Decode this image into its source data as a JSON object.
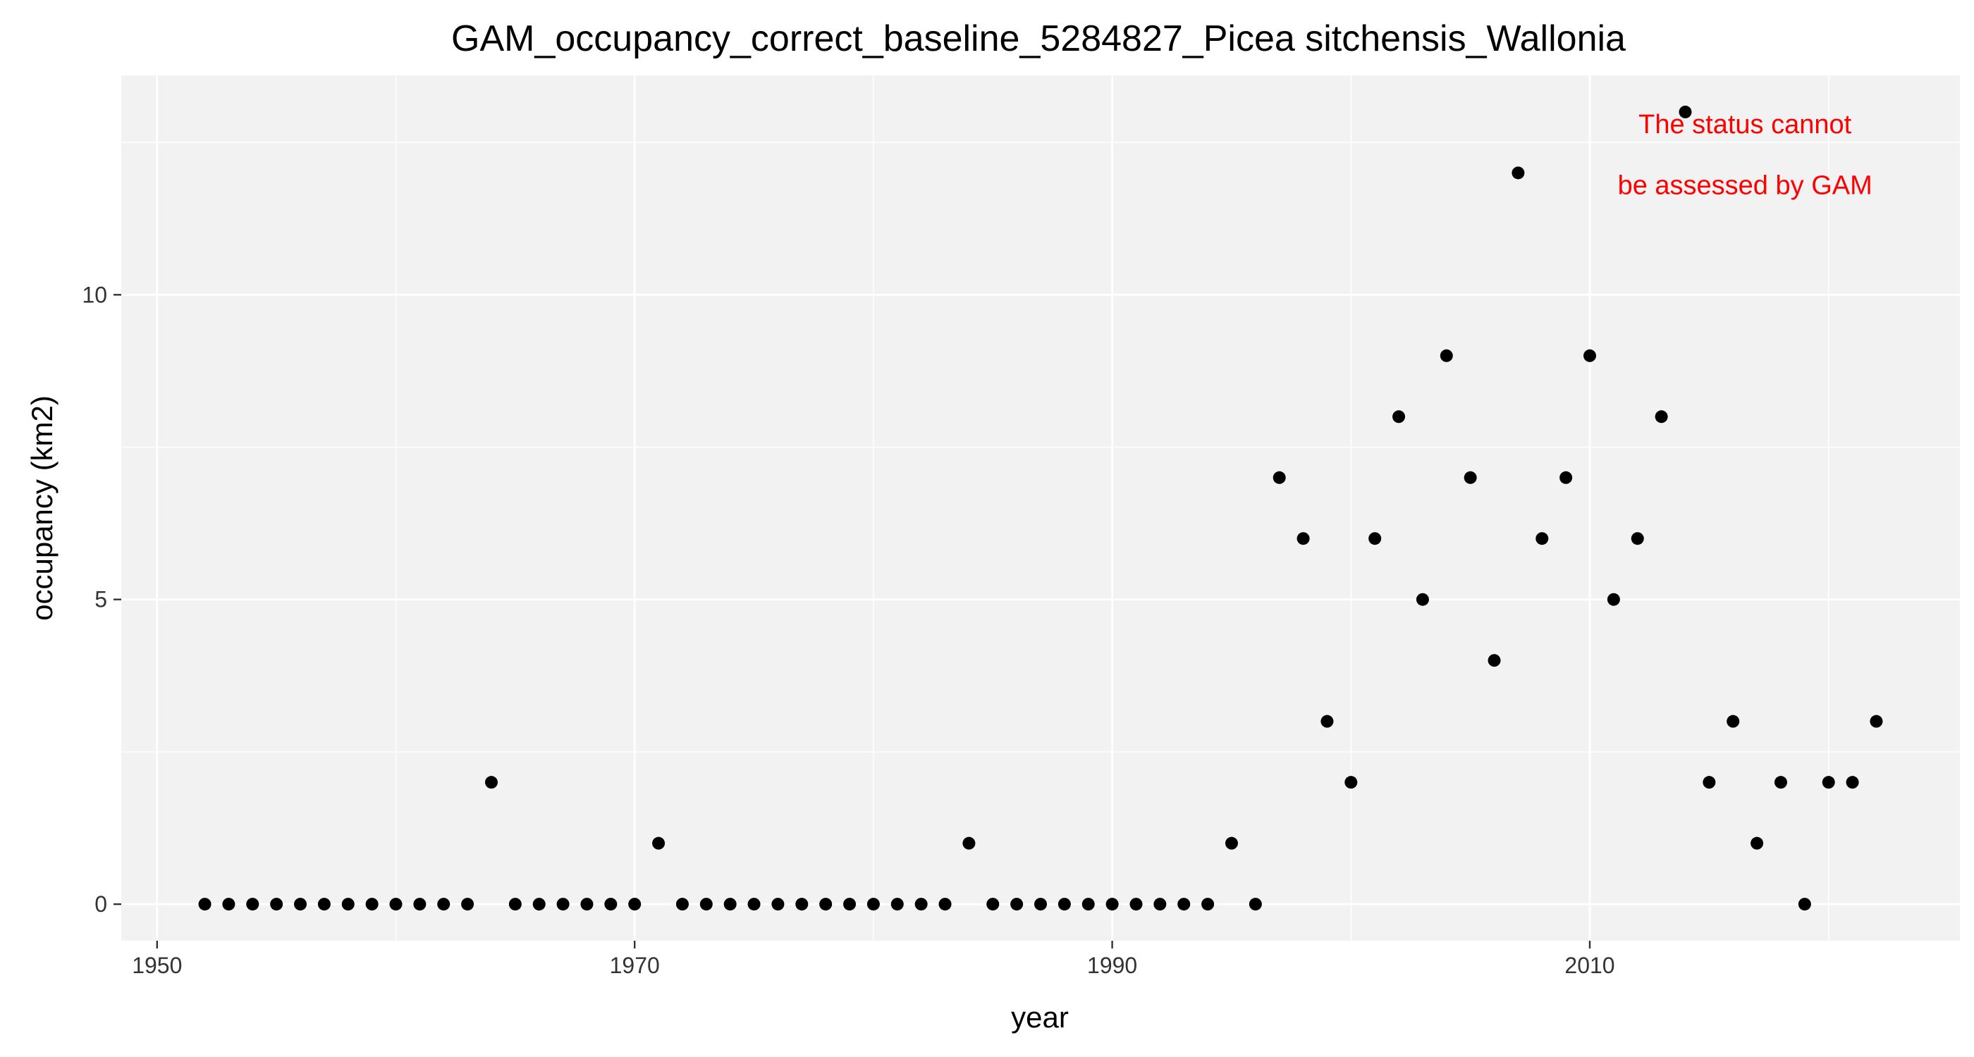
{
  "chart_data": {
    "type": "scatter",
    "title": "GAM_occupancy_correct_baseline_5284827_Picea sitchensis_Wallonia",
    "xlabel": "year",
    "ylabel": "occupancy (km2)",
    "xlim": [
      1948.5,
      2025.5
    ],
    "ylim": [
      -0.6,
      13.6
    ],
    "x_ticks": [
      1950,
      1970,
      1990,
      2010
    ],
    "y_ticks": [
      0,
      5,
      10
    ],
    "x_tick_labels": [
      "1950",
      "1970",
      "1990",
      "2010"
    ],
    "y_tick_labels": [
      "0",
      "5",
      "10"
    ],
    "grid": true,
    "legend": "none",
    "point_color": "#000000",
    "panel_color": "#f2f2f2",
    "grid_color": "#ffffff",
    "x": [
      1952,
      1953,
      1954,
      1955,
      1956,
      1957,
      1958,
      1959,
      1960,
      1961,
      1962,
      1963,
      1964,
      1965,
      1966,
      1967,
      1968,
      1969,
      1970,
      1971,
      1972,
      1973,
      1974,
      1975,
      1976,
      1977,
      1978,
      1979,
      1980,
      1981,
      1982,
      1983,
      1984,
      1985,
      1986,
      1987,
      1988,
      1989,
      1990,
      1991,
      1992,
      1993,
      1994,
      1995,
      1996,
      1997,
      1998,
      1999,
      2000,
      2001,
      2002,
      2003,
      2004,
      2005,
      2006,
      2007,
      2008,
      2009,
      2010,
      2011,
      2012,
      2013,
      2014,
      2015,
      2016,
      2017,
      2018,
      2019,
      2020,
      2021,
      2022
    ],
    "y": [
      0,
      0,
      0,
      0,
      0,
      0,
      0,
      0,
      0,
      0,
      0,
      0,
      2,
      0,
      0,
      0,
      0,
      0,
      0,
      1,
      0,
      0,
      0,
      0,
      0,
      0,
      0,
      0,
      0,
      0,
      0,
      0,
      1,
      0,
      0,
      0,
      0,
      0,
      0,
      0,
      0,
      0,
      0,
      1,
      0,
      7,
      6,
      3,
      2,
      6,
      8,
      5,
      9,
      7,
      4,
      12,
      6,
      7,
      9,
      5,
      6,
      8,
      13,
      2,
      3,
      1,
      2,
      0,
      2,
      2,
      3
    ],
    "annotation": {
      "lines": [
        "The status cannot",
        "be assessed by GAM"
      ],
      "color": "#ff0000",
      "x": 2016.5,
      "y": [
        12.8,
        11.8
      ]
    }
  }
}
